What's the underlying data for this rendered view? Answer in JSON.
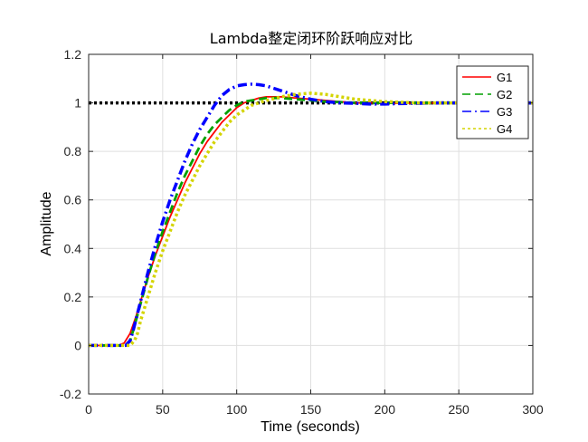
{
  "chart_data": {
    "type": "line",
    "title": "Lambda整定闭环阶跃响应对比",
    "xlabel": "Time (seconds)",
    "ylabel": "Amplitude",
    "xlim": [
      0,
      300
    ],
    "ylim": [
      -0.2,
      1.2
    ],
    "xticks": [
      "0",
      "50",
      "100",
      "150",
      "200",
      "250",
      "300"
    ],
    "yticks": [
      "-0.2",
      "0",
      "0.2",
      "0.4",
      "0.6",
      "0.8",
      "1",
      "1.2"
    ],
    "grid": true,
    "legend_position": "top-right",
    "reference_line": {
      "y": 1,
      "color": "#000000",
      "style": "dotted"
    },
    "series": [
      {
        "name": "G1",
        "color": "#ff0000",
        "style": "solid",
        "x": [
          0,
          20,
          24,
          28,
          32,
          36,
          40,
          45,
          50,
          55,
          60,
          65,
          70,
          75,
          80,
          85,
          90,
          95,
          100,
          105,
          110,
          115,
          120,
          130,
          140,
          150,
          160,
          170,
          180,
          190,
          200,
          210,
          220,
          240,
          260,
          280,
          300
        ],
        "y": [
          0,
          0,
          0.01,
          0.05,
          0.12,
          0.2,
          0.28,
          0.37,
          0.45,
          0.53,
          0.6,
          0.67,
          0.73,
          0.79,
          0.84,
          0.88,
          0.92,
          0.95,
          0.98,
          1.0,
          1.01,
          1.02,
          1.025,
          1.025,
          1.02,
          1.015,
          1.01,
          1.005,
          1.0,
          1.0,
          0.998,
          0.998,
          0.999,
          1.0,
          1.0,
          1.0,
          1.0
        ]
      },
      {
        "name": "G2",
        "color": "#00a000",
        "style": "dashed",
        "x": [
          0,
          25,
          28,
          30,
          35,
          40,
          45,
          50,
          55,
          60,
          65,
          70,
          75,
          80,
          85,
          90,
          95,
          100,
          105,
          110,
          115,
          120,
          130,
          140,
          150,
          160,
          170,
          180,
          190,
          200,
          210,
          220,
          240,
          260,
          280,
          300
        ],
        "y": [
          0,
          0,
          0.02,
          0.06,
          0.17,
          0.28,
          0.38,
          0.47,
          0.55,
          0.63,
          0.7,
          0.76,
          0.82,
          0.87,
          0.91,
          0.94,
          0.97,
          0.99,
          1.005,
          1.01,
          1.015,
          1.02,
          1.02,
          1.015,
          1.01,
          1.005,
          1.003,
          1.0,
          1.0,
          1.0,
          1.0,
          1.0,
          1.0,
          1.0,
          1.0,
          1.0
        ]
      },
      {
        "name": "G3",
        "color": "#0000ff",
        "style": "dash-dot",
        "x": [
          0,
          25,
          28,
          30,
          35,
          40,
          45,
          50,
          55,
          60,
          65,
          70,
          75,
          80,
          85,
          90,
          95,
          100,
          105,
          110,
          115,
          120,
          125,
          130,
          140,
          150,
          160,
          170,
          180,
          190,
          200,
          210,
          220,
          240,
          260,
          280,
          300
        ],
        "y": [
          0,
          0,
          0.02,
          0.06,
          0.18,
          0.3,
          0.41,
          0.51,
          0.6,
          0.68,
          0.76,
          0.83,
          0.89,
          0.94,
          0.99,
          1.03,
          1.055,
          1.07,
          1.075,
          1.077,
          1.075,
          1.07,
          1.06,
          1.05,
          1.03,
          1.015,
          1.005,
          1.0,
          0.998,
          0.995,
          0.995,
          0.997,
          0.998,
          1.0,
          1.0,
          1.0,
          1.0
        ]
      },
      {
        "name": "G4",
        "color": "#d4d400",
        "style": "dotted",
        "x": [
          0,
          28,
          31,
          33,
          35,
          40,
          45,
          50,
          55,
          60,
          65,
          70,
          75,
          80,
          85,
          90,
          95,
          100,
          105,
          110,
          115,
          120,
          130,
          140,
          150,
          160,
          170,
          180,
          190,
          200,
          210,
          220,
          240,
          260,
          280,
          300
        ],
        "y": [
          0,
          0,
          0.02,
          0.05,
          0.1,
          0.2,
          0.3,
          0.39,
          0.47,
          0.55,
          0.62,
          0.68,
          0.74,
          0.79,
          0.84,
          0.88,
          0.92,
          0.95,
          0.97,
          0.99,
          1.0,
          1.01,
          1.025,
          1.035,
          1.04,
          1.035,
          1.025,
          1.015,
          1.01,
          1.005,
          1.003,
          1.0,
          1.0,
          1.0,
          1.0,
          1.0
        ]
      }
    ]
  }
}
